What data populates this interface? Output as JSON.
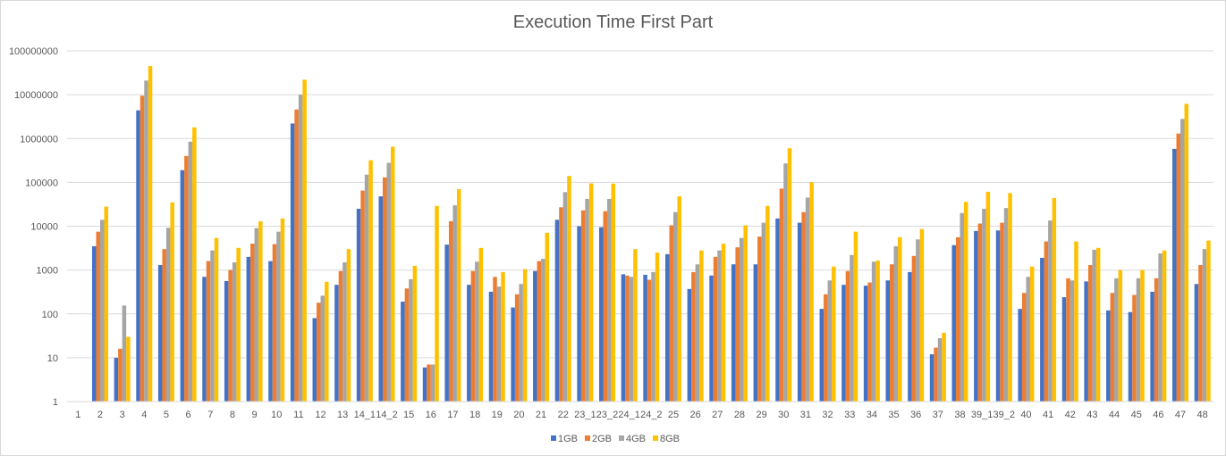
{
  "chart_data": {
    "type": "bar",
    "title": "Execution Time First Part",
    "xlabel": "",
    "ylabel": "",
    "yscale": "log",
    "ylim": [
      1,
      100000000
    ],
    "yticks": [
      "1",
      "10",
      "100",
      "1000",
      "10000",
      "100000",
      "1000000",
      "10000000",
      "100000000"
    ],
    "grid": "horizontal",
    "legend_position": "bottom",
    "categories": [
      "1",
      "2",
      "3",
      "4",
      "5",
      "6",
      "7",
      "8",
      "9",
      "10",
      "11",
      "12",
      "13",
      "14_1",
      "14_2",
      "15",
      "16",
      "17",
      "18",
      "19",
      "20",
      "21",
      "22",
      "23_1",
      "23_2",
      "24_1",
      "24_2",
      "25",
      "26",
      "27",
      "28",
      "29",
      "30",
      "31",
      "32",
      "33",
      "34",
      "35",
      "36",
      "37",
      "38",
      "39_1",
      "39_2",
      "40",
      "41",
      "42",
      "43",
      "44",
      "45",
      "46",
      "47",
      "48"
    ],
    "tick_labels": [
      "1",
      "2",
      "3",
      "4",
      "5",
      "6",
      "7",
      "8",
      "9",
      "10",
      "11",
      "12",
      "13",
      "14_1",
      "14_2",
      "15",
      "16",
      "17",
      "18",
      "19",
      "20",
      "21",
      "22",
      "23_1",
      "23_2",
      "24_1",
      "24_2",
      "25",
      "26",
      "27",
      "28",
      "29",
      "30",
      "31",
      "32",
      "33",
      "34",
      "35",
      "36",
      "37",
      "38",
      "39_1",
      "39_2",
      "40",
      "41",
      "42",
      "43",
      "44",
      "45",
      "46",
      "47",
      "48"
    ],
    "series": [
      {
        "name": "1GB",
        "color": "#4472c4",
        "values": [
          null,
          3500,
          10,
          4400000,
          1300,
          190000,
          700,
          560,
          2000,
          1600,
          2200000,
          80,
          460,
          25000,
          48000,
          190,
          6,
          3800,
          460,
          320,
          140,
          950,
          14000,
          10000,
          9500,
          800,
          780,
          2300,
          370,
          750,
          1350,
          1350,
          15000,
          12000,
          130,
          460,
          440,
          580,
          900,
          12,
          3700,
          7800,
          8000,
          130,
          1900,
          240,
          550,
          120,
          110,
          320,
          580000,
          480
        ]
      },
      {
        "name": "2GB",
        "color": "#ed7d31",
        "values": [
          null,
          7500,
          16,
          9500000,
          3000,
          400000,
          1600,
          1000,
          4000,
          3900,
          4600000,
          180,
          950,
          65000,
          130000,
          380,
          7,
          13000,
          950,
          700,
          280,
          1600,
          27000,
          23000,
          22000,
          750,
          600,
          10500,
          900,
          2000,
          3300,
          5800,
          72000,
          21000,
          280,
          950,
          520,
          1350,
          2100,
          17,
          5600,
          11500,
          12000,
          300,
          4500,
          650,
          1300,
          300,
          270,
          650,
          1300000,
          1300
        ]
      },
      {
        "name": "4GB",
        "color": "#a5a5a5",
        "values": [
          null,
          14000,
          155,
          21000000,
          9200,
          850000,
          2800,
          1500,
          9000,
          7500,
          10000000,
          260,
          1500,
          150000,
          280000,
          620,
          7,
          30000,
          1550,
          420,
          480,
          1800,
          60000,
          42000,
          42000,
          700,
          900,
          21000,
          1350,
          2800,
          5400,
          12000,
          270000,
          45000,
          580,
          2200,
          1550,
          3500,
          5000,
          28,
          20000,
          25000,
          26000,
          700,
          13500,
          580,
          2900,
          650,
          650,
          2400,
          2800000,
          3000
        ]
      },
      {
        "name": "8GB",
        "color": "#ffc000",
        "values": [
          null,
          28000,
          30,
          45000000,
          35000,
          1800000,
          5400,
          3200,
          13000,
          15000,
          22000000,
          540,
          3000,
          320000,
          650000,
          1250,
          29000,
          70000,
          3200,
          900,
          1050,
          7100,
          140000,
          95000,
          94000,
          3000,
          2500,
          48000,
          2800,
          4000,
          10500,
          29000,
          600000,
          100000,
          1200,
          7500,
          1650,
          5600,
          8600,
          37,
          36000,
          61000,
          57000,
          1200,
          44000,
          4500,
          3200,
          1000,
          1000,
          2800,
          6200000,
          4700
        ]
      }
    ]
  }
}
